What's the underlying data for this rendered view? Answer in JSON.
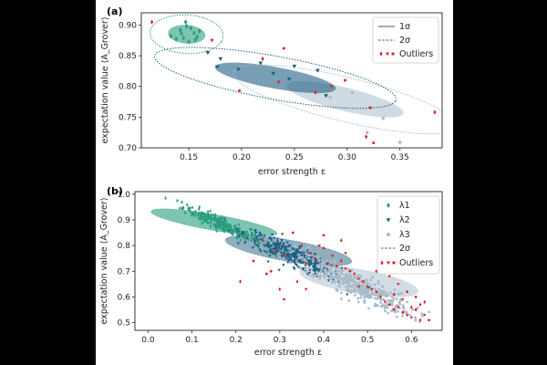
{
  "colors": {
    "l1": "#2a9d7e",
    "l2": "#1f5f82",
    "l3": "#a8bccb",
    "outlier": "#e0202a",
    "frame": "#222222"
  },
  "chart_data": [
    {
      "panel": "(a)",
      "type": "scatter",
      "xlabel": "error strength ε",
      "ylabel": "expectation value ⟨A_Grover⟩",
      "xlim": [
        0.105,
        0.39
      ],
      "ylim": [
        0.7,
        0.92
      ],
      "xticks": [
        "0.15",
        "0.20",
        "0.25",
        "0.30",
        "0.35"
      ],
      "xtick_values": [
        0.15,
        0.2,
        0.25,
        0.3,
        0.35
      ],
      "yticks": [
        "0.70",
        "0.75",
        "0.80",
        "0.85",
        "0.90"
      ],
      "ytick_values": [
        0.7,
        0.75,
        0.8,
        0.85,
        0.9
      ],
      "legend": [
        "1σ",
        "2σ",
        "Outliers"
      ],
      "legend_position": "top-right",
      "ellipses": [
        {
          "series": "λ1",
          "level": "1σ",
          "cx": 0.148,
          "cy": 0.885,
          "rx": 0.018,
          "ry": 0.015,
          "angle": -0.35
        },
        {
          "series": "λ1",
          "level": "2σ",
          "cx": 0.148,
          "cy": 0.885,
          "rx": 0.035,
          "ry": 0.031,
          "angle": -0.35
        },
        {
          "series": "λ2",
          "level": "1σ",
          "cx": 0.232,
          "cy": 0.814,
          "rx": 0.06,
          "ry": 0.017,
          "angle": -0.32
        },
        {
          "series": "λ2",
          "level": "2σ",
          "cx": 0.232,
          "cy": 0.814,
          "rx": 0.12,
          "ry": 0.034,
          "angle": -0.32
        },
        {
          "series": "λ3",
          "level": "1σ",
          "cx": 0.298,
          "cy": 0.779,
          "rx": 0.06,
          "ry": 0.018,
          "angle": -0.42
        },
        {
          "series": "λ3",
          "level": "2σ",
          "cx": 0.298,
          "cy": 0.779,
          "rx": 0.115,
          "ry": 0.034,
          "angle": -0.42
        }
      ],
      "series": [
        {
          "name": "λ1",
          "x": [
            0.133,
            0.138,
            0.142,
            0.145,
            0.147,
            0.15,
            0.152,
            0.155,
            0.158,
            0.16,
            0.148,
            0.143,
            0.156
          ],
          "y": [
            0.882,
            0.877,
            0.892,
            0.879,
            0.905,
            0.873,
            0.895,
            0.887,
            0.881,
            0.89,
            0.898,
            0.886,
            0.876
          ]
        },
        {
          "name": "λ2",
          "x": [
            0.168,
            0.177,
            0.18,
            0.197,
            0.218,
            0.23,
            0.245,
            0.25,
            0.272,
            0.28
          ],
          "y": [
            0.855,
            0.832,
            0.845,
            0.828,
            0.838,
            0.821,
            0.812,
            0.833,
            0.826,
            0.785
          ]
        },
        {
          "name": "λ3",
          "x": [
            0.284,
            0.305,
            0.319,
            0.334,
            0.35
          ],
          "y": [
            0.782,
            0.79,
            0.725,
            0.748,
            0.709
          ]
        },
        {
          "name": "Outliers",
          "x": [
            0.115,
            0.172,
            0.198,
            0.22,
            0.235,
            0.24,
            0.27,
            0.285,
            0.298,
            0.318,
            0.322,
            0.325,
            0.383
          ],
          "y": [
            0.905,
            0.875,
            0.793,
            0.845,
            0.807,
            0.862,
            0.79,
            0.8,
            0.81,
            0.718,
            0.765,
            0.708,
            0.758
          ]
        }
      ]
    },
    {
      "panel": "(b)",
      "type": "scatter",
      "xlabel": "error strength ε",
      "ylabel": "expectation value ⟨A_Grover⟩",
      "xlim": [
        -0.03,
        0.67
      ],
      "ylim": [
        0.47,
        1.01
      ],
      "xticks": [
        "0.0",
        "0.1",
        "0.2",
        "0.3",
        "0.4",
        "0.5",
        "0.6"
      ],
      "xtick_values": [
        0,
        0.1,
        0.2,
        0.3,
        0.4,
        0.5,
        0.6
      ],
      "yticks": [
        "0.5",
        "0.6",
        "0.7",
        "0.8",
        "0.9",
        "1.0"
      ],
      "ytick_values": [
        0.5,
        0.6,
        0.7,
        0.8,
        0.9,
        1.0
      ],
      "legend": [
        "λ1",
        "λ2",
        "λ3",
        "2σ",
        "Outliers"
      ],
      "legend_position": "top-right",
      "ellipses": [
        {
          "series": "λ1",
          "level": "2σ",
          "cx": 0.15,
          "cy": 0.89,
          "rx": 0.15,
          "ry": 0.03,
          "angle": -0.3
        },
        {
          "series": "λ2",
          "level": "2σ",
          "cx": 0.32,
          "cy": 0.78,
          "rx": 0.15,
          "ry": 0.04,
          "angle": -0.3
        },
        {
          "series": "λ3",
          "level": "2σ",
          "cx": 0.48,
          "cy": 0.66,
          "rx": 0.14,
          "ry": 0.045,
          "angle": -0.3
        }
      ],
      "clusters": [
        {
          "name": "λ1",
          "cx": 0.17,
          "cy": 0.88,
          "sx": 0.045,
          "sy": 0.013,
          "slope": -0.78,
          "n": 260
        },
        {
          "name": "λ2",
          "cx": 0.33,
          "cy": 0.76,
          "sx": 0.055,
          "sy": 0.02,
          "slope": -0.8,
          "n": 340
        },
        {
          "name": "λ3",
          "cx": 0.47,
          "cy": 0.65,
          "sx": 0.065,
          "sy": 0.026,
          "slope": -0.82,
          "n": 420
        }
      ],
      "outliers": {
        "x": [
          0.21,
          0.26,
          0.28,
          0.3,
          0.31,
          0.33,
          0.35,
          0.36,
          0.37,
          0.38,
          0.39,
          0.4,
          0.41,
          0.42,
          0.43,
          0.44,
          0.45,
          0.46,
          0.47,
          0.48,
          0.49,
          0.5,
          0.51,
          0.52,
          0.53,
          0.54,
          0.55,
          0.56,
          0.57,
          0.58,
          0.59,
          0.6,
          0.61,
          0.62,
          0.63,
          0.64,
          0.6,
          0.58,
          0.56,
          0.62,
          0.45,
          0.4,
          0.34,
          0.29,
          0.24,
          0.52,
          0.55,
          0.61,
          0.63,
          0.57,
          0.59,
          0.36,
          0.31,
          0.27,
          0.44,
          0.48
        ],
        "y": [
          0.66,
          0.82,
          0.7,
          0.63,
          0.59,
          0.85,
          0.8,
          0.63,
          0.77,
          0.75,
          0.8,
          0.79,
          0.73,
          0.76,
          0.72,
          0.74,
          0.71,
          0.7,
          0.69,
          0.67,
          0.66,
          0.64,
          0.63,
          0.62,
          0.6,
          0.58,
          0.57,
          0.55,
          0.56,
          0.54,
          0.53,
          0.52,
          0.55,
          0.51,
          0.53,
          0.51,
          0.56,
          0.59,
          0.61,
          0.57,
          0.77,
          0.84,
          0.66,
          0.78,
          0.74,
          0.7,
          0.68,
          0.6,
          0.58,
          0.65,
          0.62,
          0.73,
          0.76,
          0.69,
          0.82,
          0.64
        ]
      }
    }
  ]
}
